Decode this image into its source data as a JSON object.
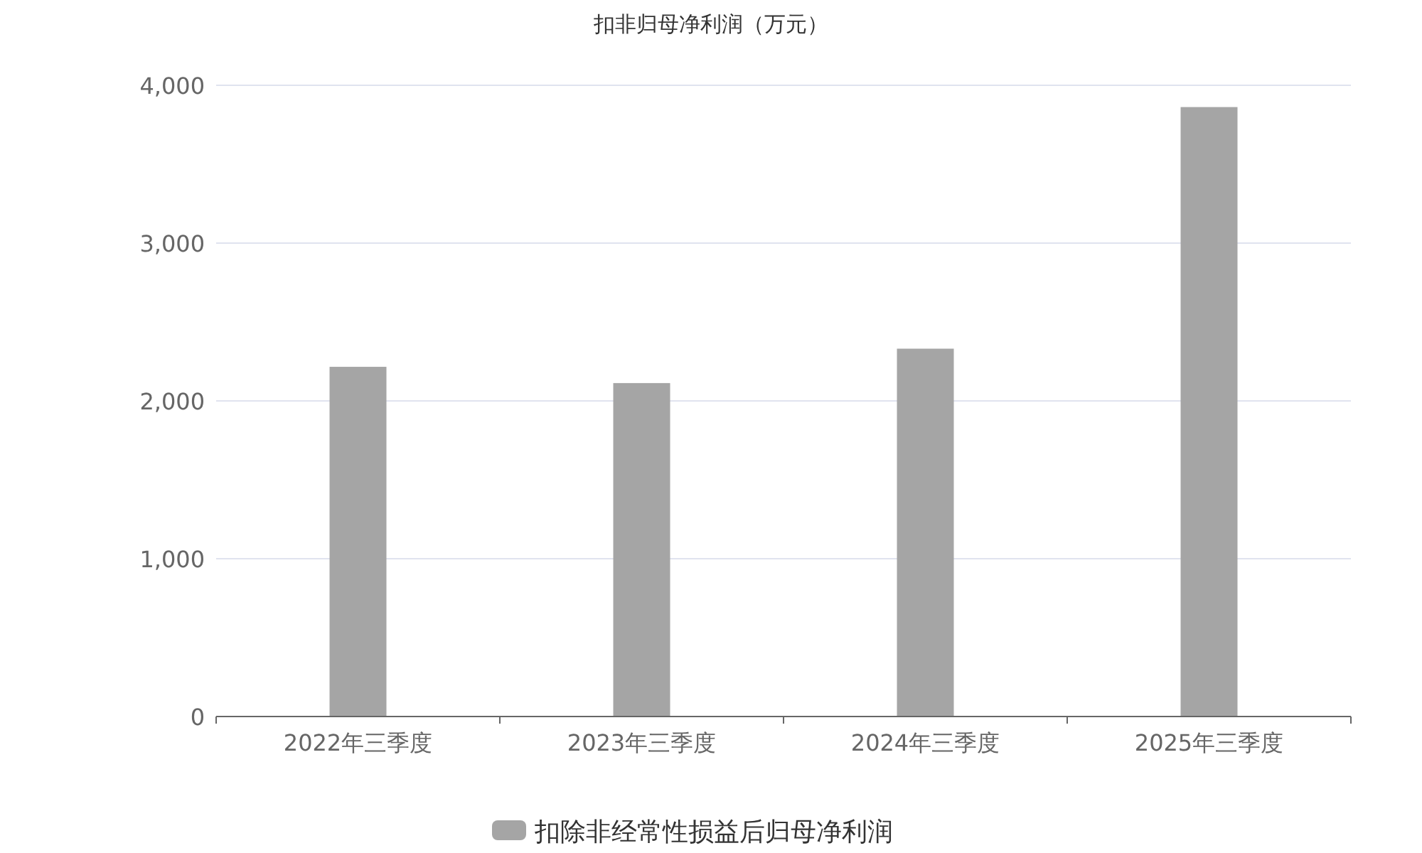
{
  "chart_data": {
    "type": "bar",
    "title": "扣非归母净利润（万元）",
    "categories": [
      "2022年三季度",
      "2023年三季度",
      "2024年三季度",
      "2025年三季度"
    ],
    "series": [
      {
        "name": "扣除非经常性损益后归母净利润",
        "color": "#a5a5a5",
        "values": [
          2216,
          2113,
          2331,
          3862
        ]
      }
    ],
    "ylim": [
      0,
      4000
    ],
    "yticks": [
      {
        "value": 0,
        "label": "0"
      },
      {
        "value": 1000,
        "label": "1,000"
      },
      {
        "value": 2000,
        "label": "2,000"
      },
      {
        "value": 3000,
        "label": "3,000"
      },
      {
        "value": 4000,
        "label": "4,000"
      }
    ],
    "grid": "y",
    "legend": "bottom"
  }
}
